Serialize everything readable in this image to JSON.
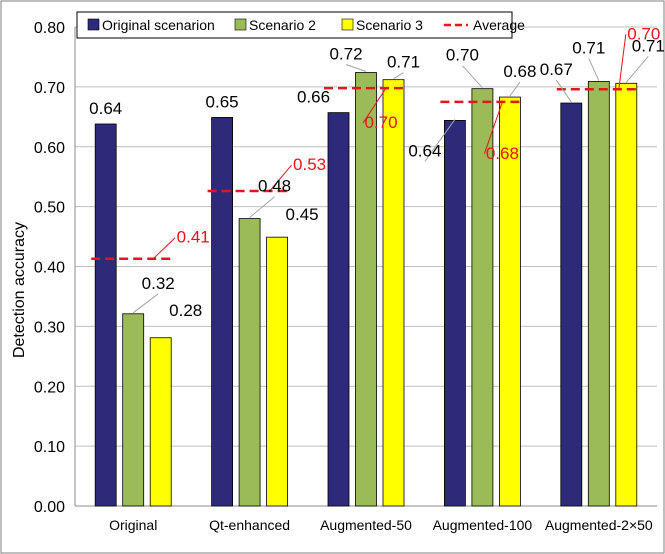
{
  "chart_data": {
    "type": "bar",
    "title": "",
    "xlabel": "",
    "ylabel": "Detection accuracy",
    "ylim": [
      0,
      0.8
    ],
    "yticks": [
      "0.00",
      "0.10",
      "0.20",
      "0.30",
      "0.40",
      "0.50",
      "0.60",
      "0.70",
      "0.80"
    ],
    "grid": true,
    "legend_position": "top",
    "categories": [
      "Original",
      "Qt-enhanced",
      "Augmented-50",
      "Augmented-100",
      "Augmented-2×50"
    ],
    "series": [
      {
        "name": "Original scenarion",
        "color": "#2e2a7a",
        "values": [
          0.638,
          0.649,
          0.657,
          0.644,
          0.673
        ],
        "labels": [
          "0.64",
          "0.65",
          "0.66",
          "0.64",
          "0.67"
        ]
      },
      {
        "name": "Scenario 2",
        "color": "#9bbb59",
        "values": [
          0.321,
          0.48,
          0.724,
          0.697,
          0.709
        ],
        "labels": [
          "0.32",
          "0.48",
          "0.72",
          "0.70",
          "0.71"
        ]
      },
      {
        "name": "Scenario 3",
        "color": "#ffff00",
        "values": [
          0.281,
          0.449,
          0.712,
          0.683,
          0.706
        ],
        "labels": [
          "0.28",
          "0.45",
          "0.71",
          "0.68",
          "0.71"
        ]
      }
    ],
    "average": {
      "name": "Average",
      "color": "#e8141b",
      "values": [
        0.413,
        0.526,
        0.698,
        0.675,
        0.696
      ],
      "labels": [
        "0.41",
        "0.53",
        "0.70",
        "0.68",
        "0.70"
      ]
    }
  }
}
